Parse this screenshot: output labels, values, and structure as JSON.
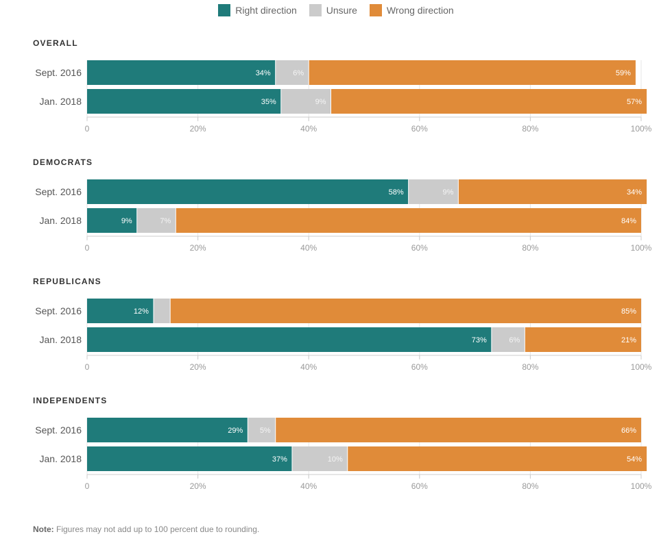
{
  "legend": [
    {
      "label": "Right direction",
      "color": "#1f7b7a"
    },
    {
      "label": "Unsure",
      "color": "#cbcbcb"
    },
    {
      "label": "Wrong direction",
      "color": "#e08b39"
    }
  ],
  "note": {
    "label": "Note:",
    "text": " Figures may not add up to 100 percent due to rounding."
  },
  "chart_data": [
    {
      "type": "bar",
      "orientation": "horizontal-stacked",
      "title": "OVERALL",
      "categories": [
        "Sept. 2016",
        "Jan. 2018"
      ],
      "series": [
        {
          "name": "Right direction",
          "values": [
            34,
            35
          ]
        },
        {
          "name": "Unsure",
          "values": [
            6,
            9
          ]
        },
        {
          "name": "Wrong direction",
          "values": [
            59,
            57
          ]
        }
      ],
      "xlim": [
        0,
        100
      ],
      "xticks": [
        "0",
        "20%",
        "40%",
        "60%",
        "80%",
        "100%"
      ],
      "grid": true
    },
    {
      "type": "bar",
      "orientation": "horizontal-stacked",
      "title": "DEMOCRATS",
      "categories": [
        "Sept. 2016",
        "Jan. 2018"
      ],
      "series": [
        {
          "name": "Right direction",
          "values": [
            58,
            9
          ]
        },
        {
          "name": "Unsure",
          "values": [
            9,
            7
          ]
        },
        {
          "name": "Wrong direction",
          "values": [
            34,
            84
          ]
        }
      ],
      "xlim": [
        0,
        100
      ],
      "xticks": [
        "0",
        "20%",
        "40%",
        "60%",
        "80%",
        "100%"
      ],
      "grid": true
    },
    {
      "type": "bar",
      "orientation": "horizontal-stacked",
      "title": "REPUBLICANS",
      "categories": [
        "Sept. 2016",
        "Jan. 2018"
      ],
      "series": [
        {
          "name": "Right direction",
          "values": [
            12,
            73
          ]
        },
        {
          "name": "Unsure",
          "values": [
            3,
            6
          ]
        },
        {
          "name": "Wrong direction",
          "values": [
            85,
            21
          ]
        }
      ],
      "hidden_labels": [
        [
          false,
          true,
          false
        ],
        [
          false,
          false,
          false
        ]
      ],
      "xlim": [
        0,
        100
      ],
      "xticks": [
        "0",
        "20%",
        "40%",
        "60%",
        "80%",
        "100%"
      ],
      "grid": true
    },
    {
      "type": "bar",
      "orientation": "horizontal-stacked",
      "title": "INDEPENDENTS",
      "categories": [
        "Sept. 2016",
        "Jan. 2018"
      ],
      "series": [
        {
          "name": "Right direction",
          "values": [
            29,
            37
          ]
        },
        {
          "name": "Unsure",
          "values": [
            5,
            10
          ]
        },
        {
          "name": "Wrong direction",
          "values": [
            66,
            54
          ]
        }
      ],
      "xlim": [
        0,
        100
      ],
      "xticks": [
        "0",
        "20%",
        "40%",
        "60%",
        "80%",
        "100%"
      ],
      "grid": true
    }
  ]
}
